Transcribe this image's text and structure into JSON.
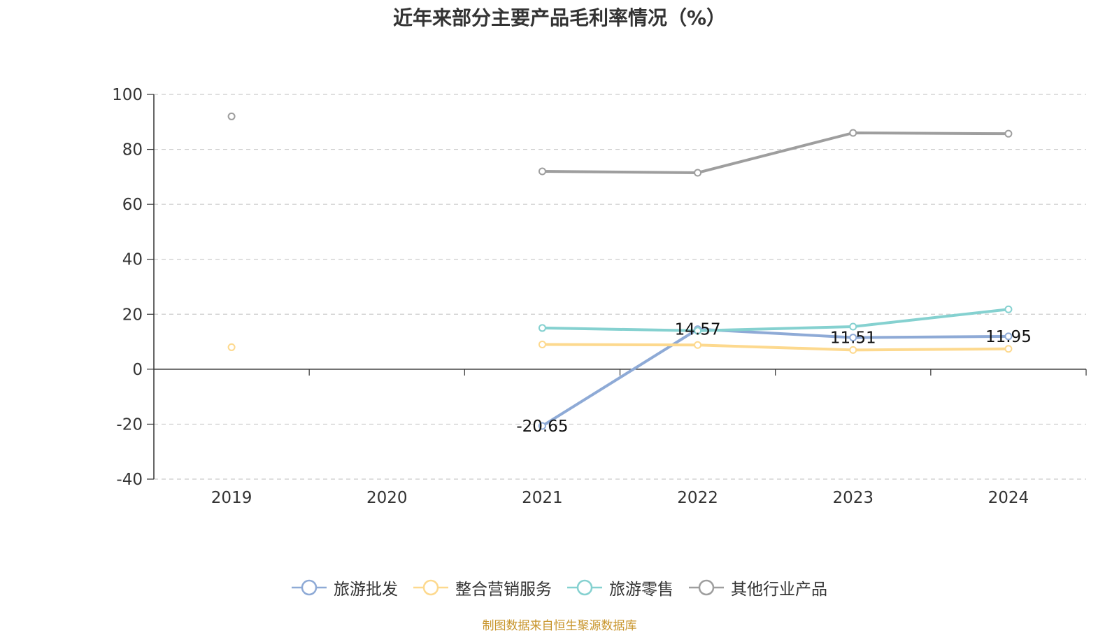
{
  "chart_data": {
    "type": "line",
    "title": "近年来部分主要产品毛利率情况（%）",
    "categories": [
      "2019",
      "2020",
      "2021",
      "2022",
      "2023",
      "2024"
    ],
    "ylim": [
      -40,
      100
    ],
    "y_ticks": [
      "100",
      "80",
      "60",
      "40",
      "20",
      "0",
      "-20",
      "-40"
    ],
    "grid": true,
    "legend_position": "bottom",
    "series": [
      {
        "name": "旅游批发",
        "color": "#8eaad6",
        "values": [
          null,
          null,
          -20.65,
          14.57,
          11.51,
          11.95
        ],
        "data_labels": [
          null,
          null,
          "-20.65",
          "14.57",
          "11.51",
          "11.95"
        ]
      },
      {
        "name": "整合营销服务",
        "color": "#fdd98e",
        "values": [
          8,
          null,
          9,
          8.8,
          7,
          7.4
        ]
      },
      {
        "name": "旅游零售",
        "color": "#85d1d0",
        "values": [
          null,
          null,
          15,
          14,
          15.5,
          21.8
        ]
      },
      {
        "name": "其他行业产品",
        "color": "#9e9e9e",
        "values": [
          92,
          null,
          72,
          71.5,
          86,
          85.7
        ]
      }
    ]
  },
  "source": "制图数据来自恒生聚源数据库"
}
